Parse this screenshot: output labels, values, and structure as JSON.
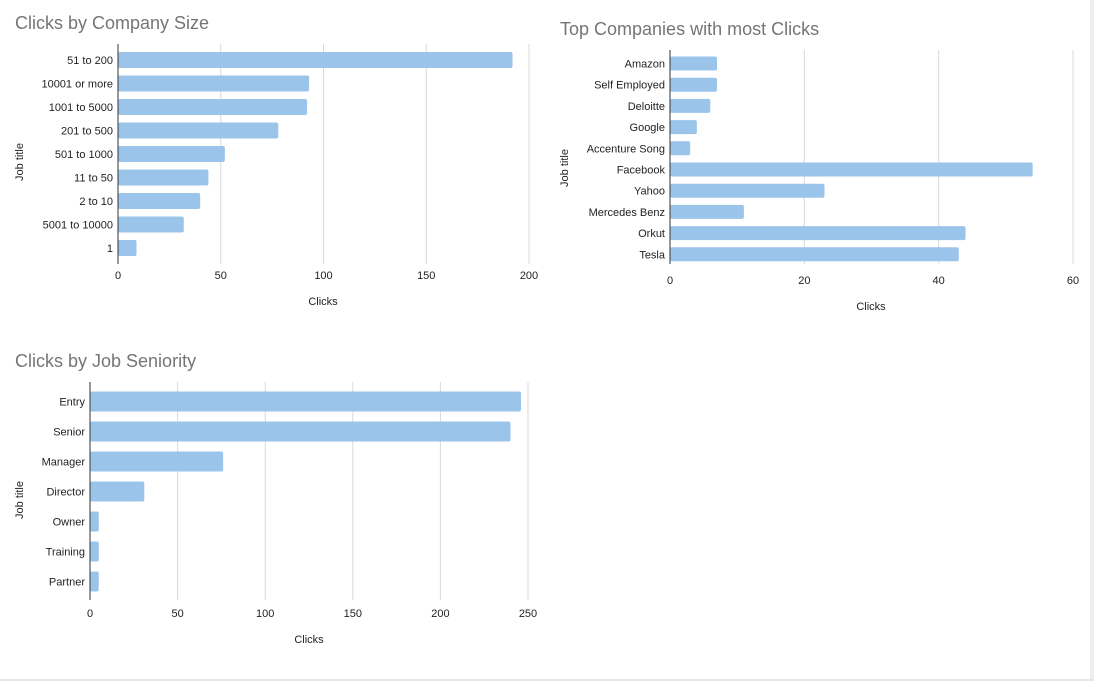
{
  "theme": {
    "bar_color": "#9bc4ea",
    "grid_color": "#d9d9d9",
    "axis_color": "#333333",
    "title_color": "#757575",
    "label_color": "#222222"
  },
  "chart_data": [
    {
      "type": "bar",
      "orientation": "horizontal",
      "title": "Clicks by Company Size",
      "xlabel": "Clicks",
      "ylabel": "Job title",
      "xlim": [
        0,
        200
      ],
      "xticks": [
        0,
        50,
        100,
        150,
        200
      ],
      "xtick_labels": [
        "0",
        "50",
        "100",
        "150",
        "200"
      ],
      "grid": true,
      "legend": "none",
      "categories": [
        "51 to 200",
        "10001 or more",
        "1001 to 5000",
        "201 to 500",
        "501 to 1000",
        "11 to 50",
        "2 to 10",
        "5001 to 10000",
        "1"
      ],
      "values": [
        192,
        93,
        92,
        78,
        52,
        44,
        40,
        32,
        9
      ]
    },
    {
      "type": "bar",
      "orientation": "horizontal",
      "title": "Top Companies with most Clicks",
      "xlabel": "Clicks",
      "ylabel": "Job title",
      "xlim": [
        0,
        60
      ],
      "xticks": [
        0,
        20,
        40,
        60
      ],
      "xtick_labels": [
        "0",
        "20",
        "40",
        "60"
      ],
      "grid": true,
      "legend": "none",
      "categories": [
        "Amazon",
        "Self Employed",
        "Deloitte",
        "Google",
        "Accenture Song",
        "Facebook",
        "Yahoo",
        "Mercedes Benz",
        "Orkut",
        "Tesla"
      ],
      "values": [
        7,
        7,
        6,
        4,
        3,
        54,
        23,
        11,
        44,
        43
      ]
    },
    {
      "type": "bar",
      "orientation": "horizontal",
      "title": "Clicks by Job Seniority",
      "xlabel": "Clicks",
      "ylabel": "Job title",
      "xlim": [
        0,
        250
      ],
      "xticks": [
        0,
        50,
        100,
        150,
        200,
        250
      ],
      "xtick_labels": [
        "0",
        "50",
        "100",
        "150",
        "200",
        "250"
      ],
      "grid": true,
      "legend": "none",
      "categories": [
        "Entry",
        "Senior",
        "Manager",
        "Director",
        "Owner",
        "Training",
        "Partner"
      ],
      "values": [
        246,
        240,
        76,
        31,
        5,
        5,
        5
      ]
    }
  ]
}
